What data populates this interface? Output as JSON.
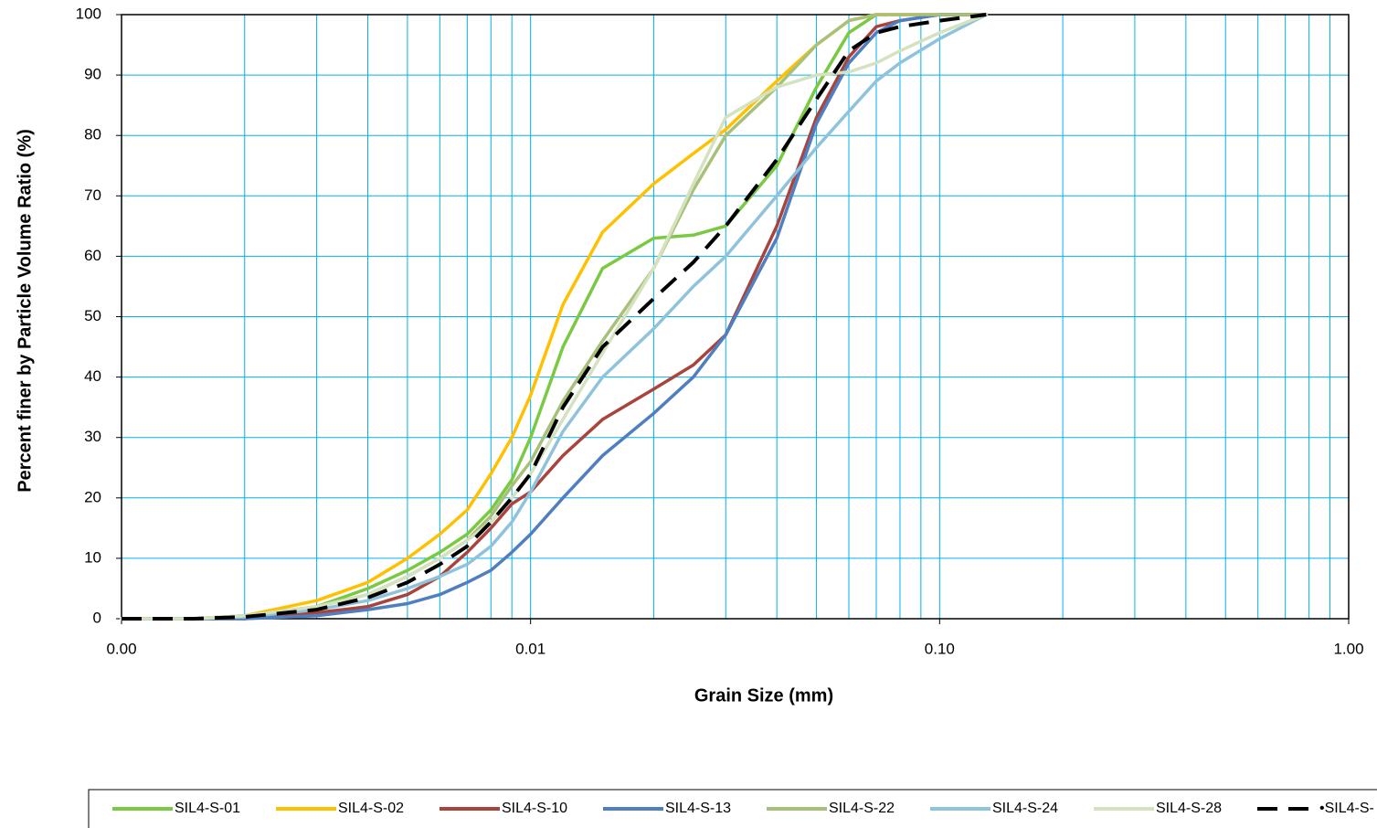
{
  "chart_data": {
    "type": "line",
    "x_label": "Grain Size (mm)",
    "y_label": "Percent finer by Particle Volume Ratio (%)",
    "log_x": true,
    "grid": true,
    "grid_color": "#00b0f0",
    "legend": "bottom",
    "xlim": [
      0.001,
      1
    ],
    "xticks": [
      {
        "value": 0.001,
        "label": "0.00"
      },
      {
        "value": 0.01,
        "label": "0.01"
      },
      {
        "value": 0.1,
        "label": "0.10"
      },
      {
        "value": 1,
        "label": "1.00"
      }
    ],
    "xminor": [
      0.002,
      0.003,
      0.004,
      0.005,
      0.006,
      0.007,
      0.008,
      0.009,
      0.02,
      0.03,
      0.04,
      0.05,
      0.06,
      0.07,
      0.08,
      0.09,
      0.2,
      0.3,
      0.4,
      0.5,
      0.6,
      0.7,
      0.8,
      0.9
    ],
    "ylim": [
      0,
      100
    ],
    "yticks": [
      0,
      10,
      20,
      30,
      40,
      50,
      60,
      70,
      80,
      90,
      100
    ],
    "x": [
      0.001,
      0.0015,
      0.002,
      0.003,
      0.004,
      0.005,
      0.006,
      0.007,
      0.008,
      0.009,
      0.01,
      0.012,
      0.015,
      0.02,
      0.025,
      0.03,
      0.04,
      0.05,
      0.06,
      0.07,
      0.08,
      0.1,
      0.13
    ],
    "series": [
      {
        "name": "SIL4-S-01",
        "color": "#7ac943",
        "values": [
          0,
          0,
          0.5,
          2,
          5,
          8,
          11,
          14,
          18,
          23,
          30,
          45,
          58,
          63,
          63.5,
          65,
          75,
          88,
          97,
          100,
          100,
          100,
          100
        ]
      },
      {
        "name": "SIL4-S-02",
        "color": "#ffc000",
        "values": [
          0,
          0,
          0.5,
          3,
          6,
          10,
          14,
          18,
          24,
          30,
          37,
          52,
          64,
          72,
          77,
          81,
          89,
          95,
          99,
          100,
          100,
          100,
          100
        ]
      },
      {
        "name": "SIL4-S-10",
        "color": "#a9443d",
        "values": [
          0,
          0,
          0,
          1,
          2,
          4,
          7,
          11,
          15,
          19,
          21,
          27,
          33,
          38,
          42,
          47,
          65,
          83,
          93,
          98,
          99,
          100,
          100
        ]
      },
      {
        "name": "SIL4-S-13",
        "color": "#4f7fc0",
        "values": [
          0,
          0,
          0,
          0.5,
          1.5,
          2.5,
          4,
          6,
          8,
          11,
          14,
          20,
          27,
          34,
          40,
          47,
          63,
          82,
          92,
          97,
          99,
          100,
          100
        ]
      },
      {
        "name": "SIL4-S-22",
        "color": "#a8c07a",
        "values": [
          0,
          0,
          0.5,
          2,
          4,
          7,
          10,
          13,
          17,
          22,
          26,
          36,
          46,
          58,
          71,
          80,
          88,
          95,
          99,
          100,
          100,
          100,
          100
        ]
      },
      {
        "name": "SIL4-S-24",
        "color": "#8fc3dc",
        "values": [
          0,
          0,
          0.3,
          1.5,
          3,
          5,
          7,
          9,
          12,
          16,
          21,
          31,
          40,
          48,
          55,
          60,
          70,
          78,
          84,
          89,
          92,
          96,
          100
        ]
      },
      {
        "name": "SIL4-S-28",
        "color": "#d4e2bf",
        "values": [
          0,
          0,
          0.5,
          2,
          4,
          7,
          10,
          13,
          16,
          20,
          24,
          33,
          44,
          58,
          72,
          83,
          88,
          90,
          90.5,
          92,
          94,
          97,
          100
        ]
      },
      {
        "name": "•SIL4-S-",
        "color": "#000000",
        "dashed": true,
        "values": [
          0,
          0,
          0.3,
          1.5,
          3.5,
          6,
          9,
          12,
          16,
          20,
          24,
          35,
          45,
          53,
          59,
          65,
          76,
          86,
          94,
          97,
          98,
          99,
          100
        ]
      }
    ]
  }
}
